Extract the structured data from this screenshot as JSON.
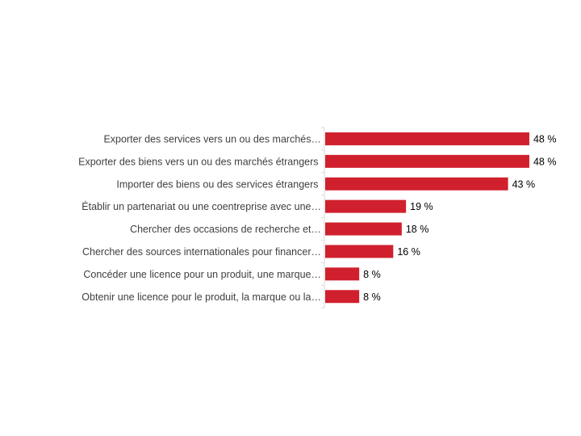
{
  "chart_data": {
    "type": "bar",
    "orientation": "horizontal",
    "categories": [
      "Exporter des services vers un ou des marchés…",
      "Exporter des biens vers un ou des marchés étrangers ",
      "Importer des biens ou des services étrangers ",
      "Établir un partenariat ou une coentreprise avec une…",
      "Chercher des occasions de recherche et…",
      "Chercher des sources internationales pour financer…",
      "Concéder une licence pour un produit, une marque…",
      "Obtenir une licence pour le produit, la marque ou la…"
    ],
    "values": [
      48,
      48,
      43,
      19,
      18,
      16,
      8,
      8
    ],
    "data_labels": [
      "48 %",
      "48 %",
      "43 %",
      "19 %",
      "18 %",
      "16 %",
      "8 %",
      "8 %"
    ],
    "unit": "%",
    "bar_color": "#D0202E",
    "xlim": [
      0,
      60
    ],
    "grid": false,
    "legend": "none"
  }
}
